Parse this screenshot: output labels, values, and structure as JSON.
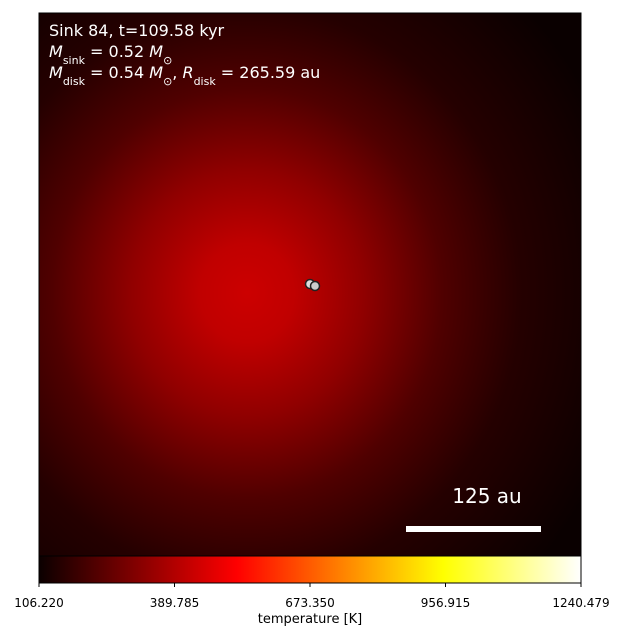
{
  "chart_data": {
    "type": "image",
    "colormap": "hot",
    "annotations": [
      [
        {
          "text": "Sink 84, t=109.58 kyr",
          "style": "normal"
        }
      ],
      [
        {
          "text": "M",
          "style": "italic"
        },
        {
          "text": "sink",
          "style": "sub"
        },
        {
          "text": " = 0.52 ",
          "style": "normal"
        },
        {
          "text": "M",
          "style": "italic"
        },
        {
          "text": "⊙",
          "style": "sub"
        }
      ],
      [
        {
          "text": "M",
          "style": "italic"
        },
        {
          "text": "disk",
          "style": "sub"
        },
        {
          "text": " = 0.54 ",
          "style": "normal"
        },
        {
          "text": "M",
          "style": "italic"
        },
        {
          "text": "⊙",
          "style": "sub"
        },
        {
          "text": ", ",
          "style": "normal"
        },
        {
          "text": "R",
          "style": "italic"
        },
        {
          "text": "disk",
          "style": "sub"
        },
        {
          "text": " = 265.59 au",
          "style": "normal"
        }
      ]
    ],
    "scale_bar_label": "125 au",
    "colorbar": {
      "label": "temperature [K]",
      "clim": [
        106.22,
        1240.479
      ],
      "ticks": [
        {
          "value": 106.22,
          "label": "106.220"
        },
        389.785,
        {
          "value": 673.35,
          "label": "673.350"
        },
        956.915,
        1240.479
      ]
    }
  }
}
